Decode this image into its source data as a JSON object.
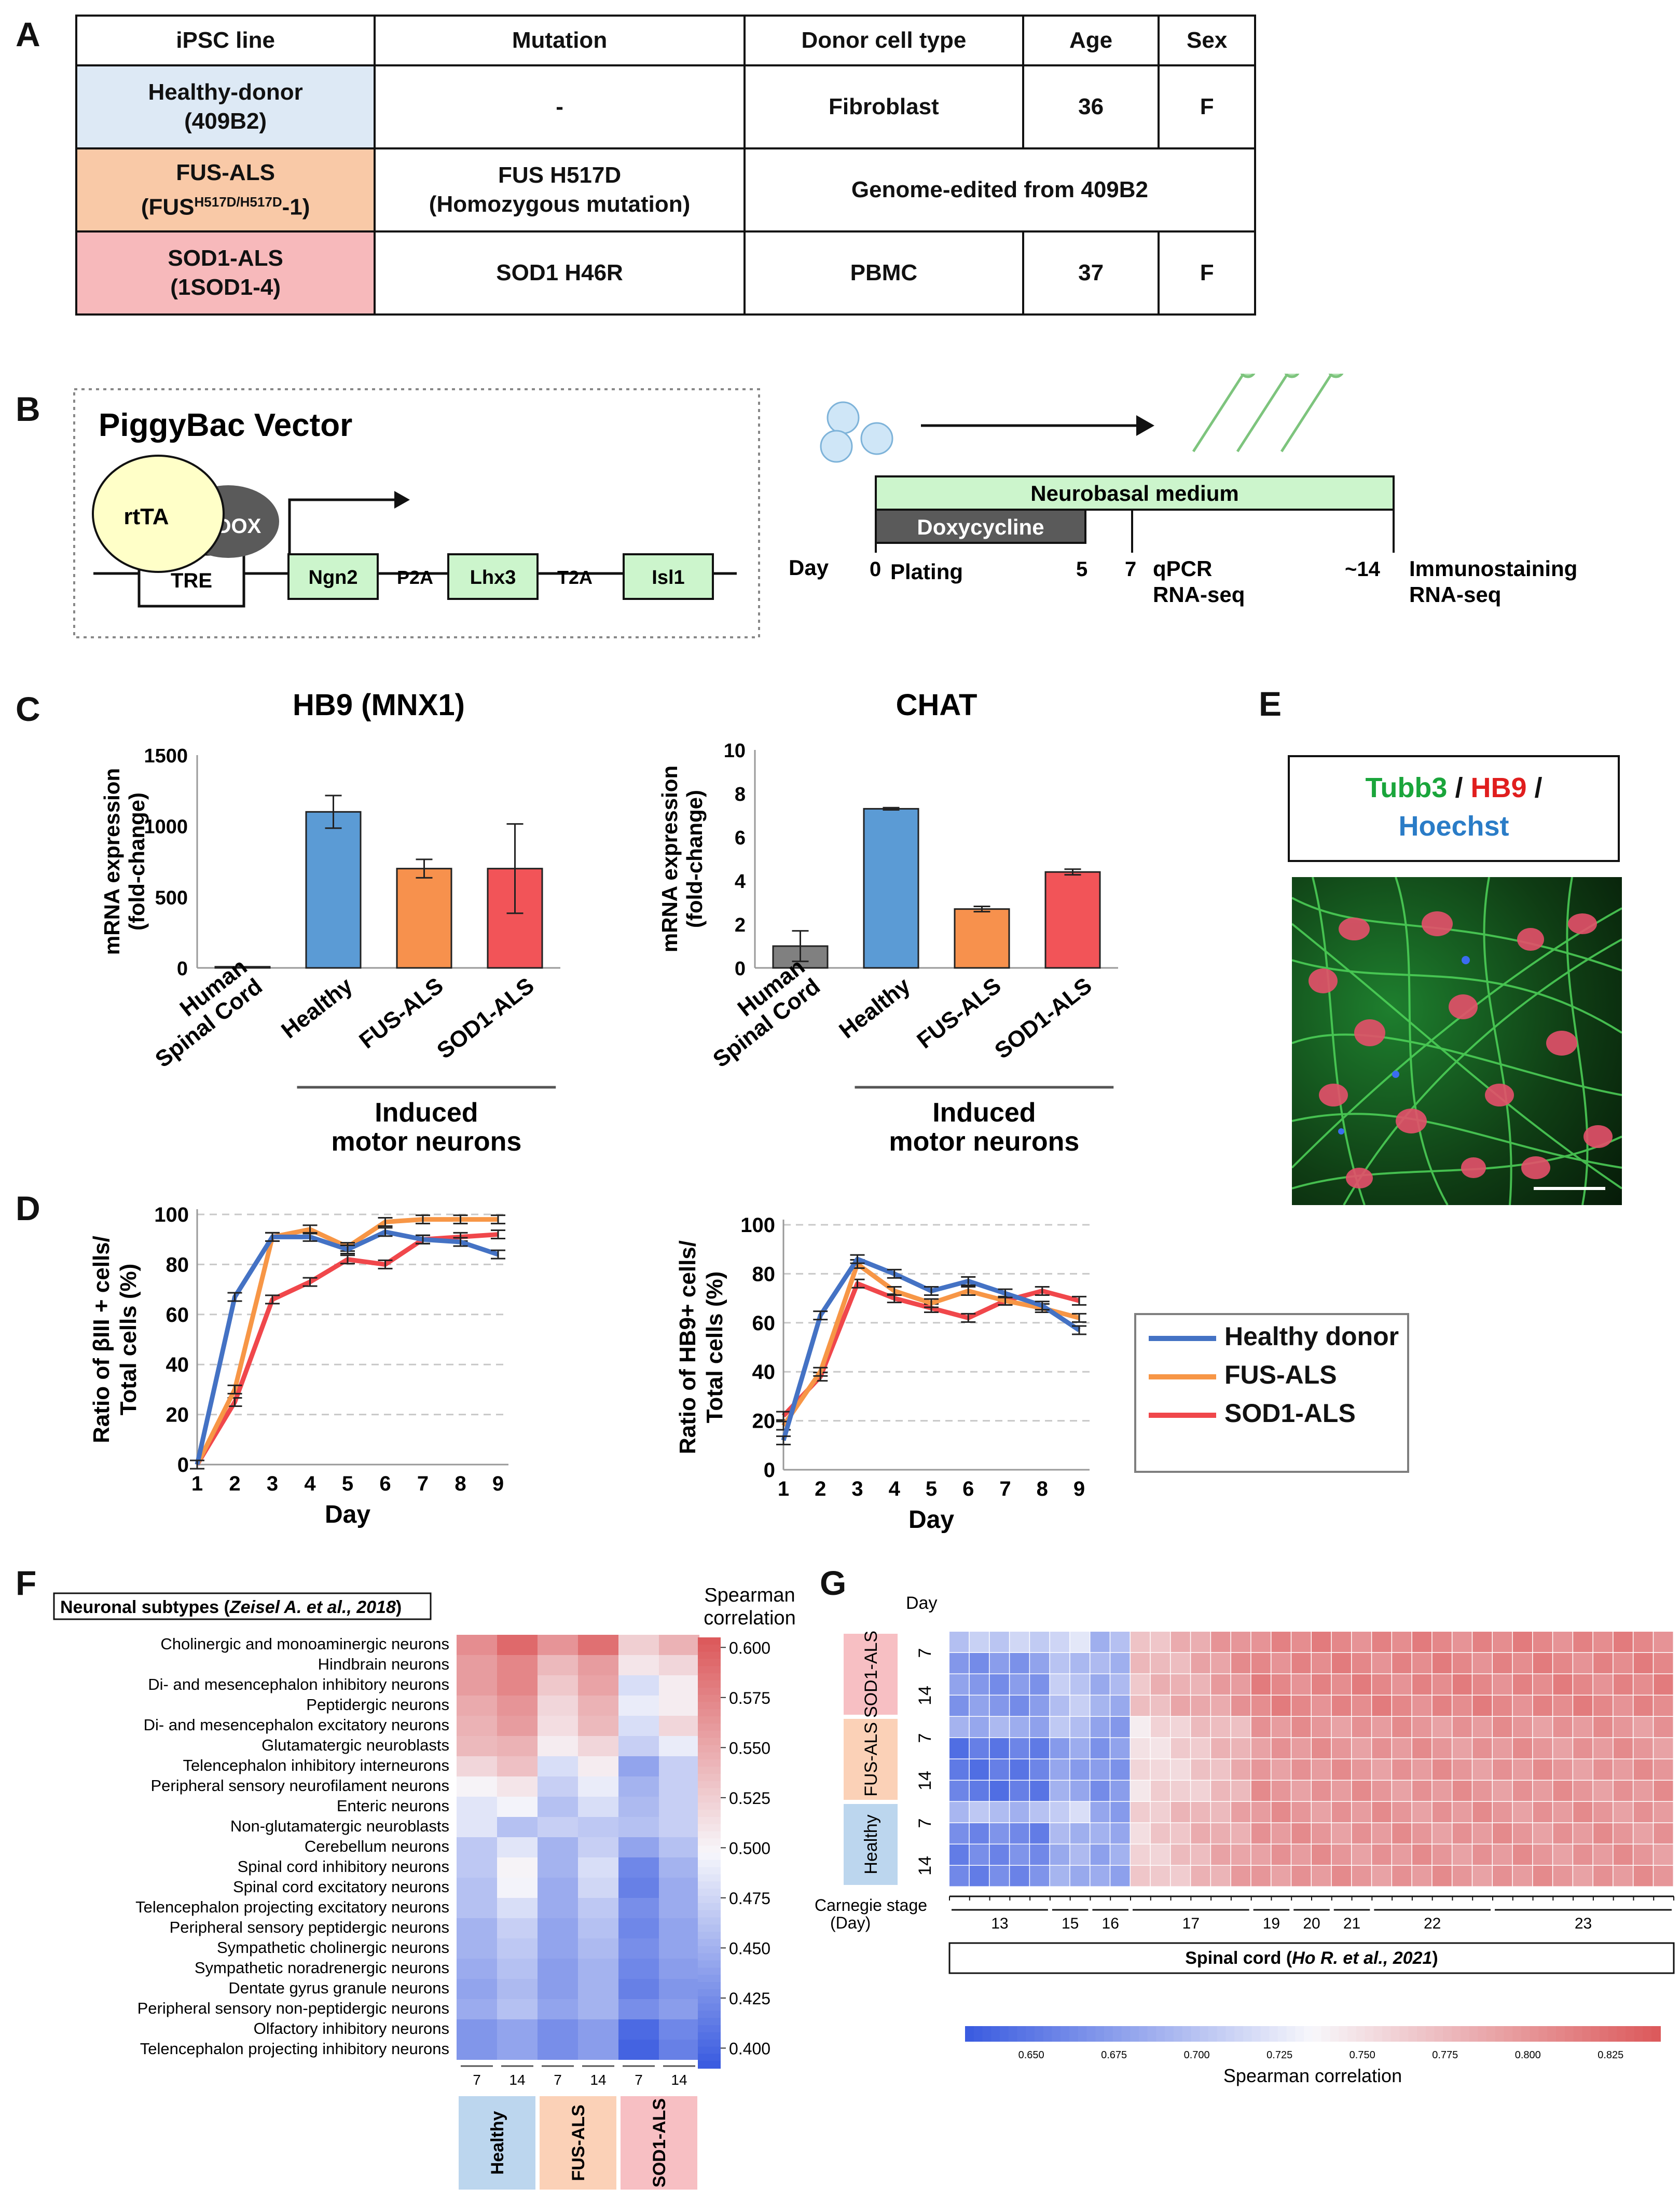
{
  "panelA": {
    "letter": "A",
    "headers": [
      "iPSC line",
      "Mutation",
      "Donor cell type",
      "Age",
      "Sex"
    ],
    "rows": [
      {
        "line": "Healthy-donor",
        "line_sub": "(409B2)",
        "mutation": "-",
        "mutation_sub": "",
        "donor": "Fibroblast",
        "age": "36",
        "sex": "F"
      },
      {
        "line": "FUS-ALS",
        "line_sub_prefix": "(FUS",
        "line_sub_sup": "H517D/H517D",
        "line_sub_suffix": "-1)",
        "mutation": "FUS H517D",
        "mutation_sub": "(Homozygous mutation)",
        "donor": "Genome-edited from 409B2"
      },
      {
        "line": "SOD1-ALS",
        "line_sub": "(1SOD1-4)",
        "mutation": "SOD1 H46R",
        "mutation_sub": "",
        "donor": "PBMC",
        "age": "37",
        "sex": "F"
      }
    ]
  },
  "panelB": {
    "letter": "B",
    "vector_title": "PiggyBac Vector",
    "rtta": "rtTA",
    "dox": "DOX",
    "tre": "TRE",
    "genes": [
      "Ngn2",
      "Lhx3",
      "Isl1"
    ],
    "linkers": [
      "P2A",
      "T2A"
    ],
    "neurobasal": "Neurobasal medium",
    "doxycycline": "Doxycycline",
    "day_label": "Day",
    "ticks": [
      {
        "day": "0",
        "label": "Plating",
        "label2": ""
      },
      {
        "day": "5",
        "label": "",
        "label2": ""
      },
      {
        "day": "7",
        "label": "qPCR",
        "label2": "RNA-seq"
      },
      {
        "day": "~14",
        "label": "Immunostaining",
        "label2": "RNA-seq"
      }
    ]
  },
  "panelC": {
    "letter": "C",
    "categories": [
      "Human Spinal Cord",
      "Healthy",
      "FUS-ALS",
      "SOD1-ALS"
    ],
    "group_label_1": "Induced",
    "group_label_2": "motor neurons",
    "ylabel_1": "mRNA expression",
    "ylabel_2": "(fold-change)",
    "colors": [
      "#808080",
      "#5b9bd5",
      "#f7914d",
      "#f25458"
    ],
    "hb9": {
      "title": "HB9 (MNX1)",
      "values": [
        8,
        1100,
        700,
        700
      ],
      "errors": [
        0,
        115,
        65,
        315
      ],
      "ylim": [
        0,
        1500
      ],
      "ticks": [
        "0",
        "500",
        "1000",
        "1500"
      ]
    },
    "chat": {
      "title": "CHAT",
      "values": [
        1.0,
        7.3,
        2.7,
        4.4
      ],
      "errors": [
        0.7,
        0.05,
        0.12,
        0.13
      ],
      "ylim": [
        0,
        10
      ],
      "ticks": [
        "0",
        "2",
        "4",
        "6",
        "8",
        "10"
      ]
    }
  },
  "chart_data": [
    {
      "type": "bar",
      "title": "HB9 (MNX1)",
      "categories": [
        "Human Spinal Cord",
        "Healthy",
        "FUS-ALS",
        "SOD1-ALS"
      ],
      "values": [
        8,
        1100,
        700,
        700
      ],
      "ylabel": "mRNA expression (fold-change)",
      "ylim": [
        0,
        1500
      ]
    },
    {
      "type": "bar",
      "title": "CHAT",
      "categories": [
        "Human Spinal Cord",
        "Healthy",
        "FUS-ALS",
        "SOD1-ALS"
      ],
      "values": [
        1.0,
        7.3,
        2.7,
        4.4
      ],
      "ylabel": "mRNA expression (fold-change)",
      "ylim": [
        0,
        10
      ]
    },
    {
      "type": "line",
      "x": [
        1,
        2,
        3,
        4,
        5,
        6,
        7,
        8,
        9
      ],
      "xlabel": "Day",
      "ylabel": "Ratio of βIII + cells/ Total cells (%)",
      "ylim": [
        0,
        100
      ],
      "series": [
        {
          "name": "Healthy donor",
          "values": [
            0,
            67,
            91,
            91,
            86,
            93,
            90,
            89,
            84
          ]
        },
        {
          "name": "FUS-ALS",
          "values": [
            0,
            30,
            91,
            94,
            87,
            97,
            98,
            98,
            98
          ]
        },
        {
          "name": "SOD1-ALS",
          "values": [
            0,
            25,
            66,
            73,
            82,
            80,
            90,
            91,
            92
          ]
        }
      ]
    },
    {
      "type": "line",
      "x": [
        1,
        2,
        3,
        4,
        5,
        6,
        7,
        8,
        9
      ],
      "xlabel": "Day",
      "ylabel": "Ratio of HB9+ cells/ Total cells (%)",
      "ylim": [
        0,
        100
      ],
      "series": [
        {
          "name": "Healthy donor",
          "values": [
            12,
            63,
            86,
            80,
            73,
            77,
            72,
            67,
            57
          ]
        },
        {
          "name": "FUS-ALS",
          "values": [
            18,
            40,
            84,
            73,
            68,
            73,
            69,
            66,
            62
          ]
        },
        {
          "name": "SOD1-ALS",
          "values": [
            22,
            38,
            76,
            70,
            66,
            62,
            69,
            73,
            69
          ]
        }
      ]
    },
    {
      "type": "heatmap",
      "title": "Neuronal subtypes (Zeisel A. et al., 2018)",
      "columns": [
        "Healthy 7",
        "Healthy 14",
        "FUS-ALS 7",
        "FUS-ALS 14",
        "SOD1-ALS 7",
        "SOD1-ALS 14"
      ],
      "colorbar_label": "Spearman correlation",
      "colorbar_range": [
        0.39,
        0.605
      ]
    },
    {
      "type": "heatmap",
      "title": "Spinal cord (Ho R. et al., 2021)",
      "xlabel": "Carnegie stage (Day)",
      "stages": [
        "13",
        "15",
        "16",
        "17",
        "19",
        "20",
        "21",
        "22",
        "23"
      ],
      "colorbar_label": "Spearman correlation",
      "colorbar_range": [
        0.63,
        0.84
      ]
    }
  ],
  "panelD": {
    "letter": "D",
    "left_ylabel_1": "Ratio of βIII + cells/",
    "left_ylabel_2": "Total cells (%)",
    "right_ylabel_1": "Ratio of HB9+ cells/",
    "right_ylabel_2": "Total cells (%)",
    "xlabel": "Day",
    "days": [
      "1",
      "2",
      "3",
      "4",
      "5",
      "6",
      "7",
      "8",
      "9"
    ],
    "yticks": [
      "0",
      "20",
      "40",
      "60",
      "80",
      "100"
    ],
    "legend": [
      {
        "name": "Healthy donor",
        "color": "#4472c4"
      },
      {
        "name": "FUS-ALS",
        "color": "#f79646"
      },
      {
        "name": "SOD1-ALS",
        "color": "#f0474b"
      }
    ]
  },
  "panelE": {
    "letter": "E",
    "stain_1": "Tubb3",
    "sep_1": " / ",
    "stain_2": "HB9",
    "sep_2": " /",
    "stain_3": "Hoechst",
    "colors": {
      "tubb3": "#1aa53b",
      "hb9": "#e01e1e",
      "hoechst": "#2a7cc7"
    }
  },
  "panelF": {
    "letter": "F",
    "title_plain": "Neuronal subtypes (",
    "title_italic": "Zeisel A. et al., 2018",
    "title_end": ")",
    "colorbar_title_1": "Spearman",
    "colorbar_title_2": "correlation",
    "colorbar_ticks": [
      "0.600",
      "0.575",
      "0.550",
      "0.525",
      "0.500",
      "0.475",
      "0.450",
      "0.425",
      "0.400"
    ],
    "rows": [
      "Cholinergic and monoaminergic neurons",
      "Hindbrain neurons",
      "Di- and mesencephalon inhibitory neurons",
      "Peptidergic neurons",
      "Di- and mesencephalon excitatory neurons",
      "Glutamatergic neuroblasts",
      "Telencephalon inhibitory interneurons",
      "Peripheral sensory neurofilament neurons",
      "Enteric neurons",
      "Non-glutamatergic neuroblasts",
      "Cerebellum neurons",
      "Spinal cord inhibitory neurons",
      "Spinal cord excitatory neurons",
      "Telencephalon projecting excitatory neurons",
      "Peripheral sensory peptidergic neurons",
      "Sympathetic cholinergic neurons",
      "Sympathetic noradrenergic neurons",
      "Dentate gyrus granule neurons",
      "Peripheral sensory non-peptidergic neurons",
      "Olfactory inhibitory neurons",
      "Telencephalon projecting inhibitory neurons"
    ],
    "col_days": [
      "7",
      "14",
      "7",
      "14",
      "7",
      "14"
    ],
    "groups": [
      "Healthy",
      "FUS-ALS",
      "SOD1-ALS"
    ],
    "values": [
      [
        0.57,
        0.595,
        0.565,
        0.59,
        0.525,
        0.545
      ],
      [
        0.56,
        0.575,
        0.54,
        0.56,
        0.51,
        0.52
      ],
      [
        0.56,
        0.575,
        0.53,
        0.555,
        0.48,
        0.505
      ],
      [
        0.55,
        0.565,
        0.52,
        0.545,
        0.49,
        0.505
      ],
      [
        0.545,
        0.56,
        0.515,
        0.54,
        0.48,
        0.52
      ],
      [
        0.54,
        0.545,
        0.505,
        0.52,
        0.47,
        0.49
      ],
      [
        0.52,
        0.535,
        0.48,
        0.505,
        0.44,
        0.47
      ],
      [
        0.5,
        0.51,
        0.47,
        0.49,
        0.45,
        0.47
      ],
      [
        0.485,
        0.495,
        0.46,
        0.48,
        0.455,
        0.47
      ],
      [
        0.485,
        0.46,
        0.47,
        0.465,
        0.46,
        0.47
      ],
      [
        0.465,
        0.485,
        0.45,
        0.47,
        0.44,
        0.46
      ],
      [
        0.465,
        0.5,
        0.45,
        0.48,
        0.42,
        0.45
      ],
      [
        0.46,
        0.495,
        0.445,
        0.475,
        0.415,
        0.445
      ],
      [
        0.46,
        0.48,
        0.445,
        0.465,
        0.425,
        0.445
      ],
      [
        0.45,
        0.47,
        0.44,
        0.46,
        0.42,
        0.44
      ],
      [
        0.45,
        0.465,
        0.44,
        0.455,
        0.425,
        0.44
      ],
      [
        0.445,
        0.46,
        0.435,
        0.45,
        0.42,
        0.435
      ],
      [
        0.44,
        0.455,
        0.435,
        0.45,
        0.415,
        0.43
      ],
      [
        0.445,
        0.46,
        0.44,
        0.45,
        0.425,
        0.435
      ],
      [
        0.43,
        0.44,
        0.425,
        0.435,
        0.4,
        0.42
      ],
      [
        0.43,
        0.44,
        0.425,
        0.435,
        0.395,
        0.415
      ]
    ],
    "range": [
      0.39,
      0.605
    ]
  },
  "panelG": {
    "letter": "G",
    "day_header": "Day",
    "groups": [
      "SOD1-ALS",
      "FUS-ALS",
      "Healthy"
    ],
    "group_days": [
      "7",
      "14"
    ],
    "xlabel_1": "Carnegie stage",
    "xlabel_2": "(Day)",
    "stages": [
      "13",
      "15",
      "16",
      "17",
      "19",
      "20",
      "21",
      "22",
      "23"
    ],
    "stage_widths": [
      5,
      2,
      2,
      6,
      2,
      2,
      2,
      6,
      9
    ],
    "ref_plain": "Spinal cord (",
    "ref_italic": "Ho R. et al., 2021",
    "ref_end": ")",
    "colorbar_label": "Spearman correlation",
    "colorbar_ticks": [
      "0.650",
      "0.675",
      "0.700",
      "0.725",
      "0.750",
      "0.775",
      "0.800",
      "0.825"
    ],
    "range": [
      0.63,
      0.84
    ]
  }
}
